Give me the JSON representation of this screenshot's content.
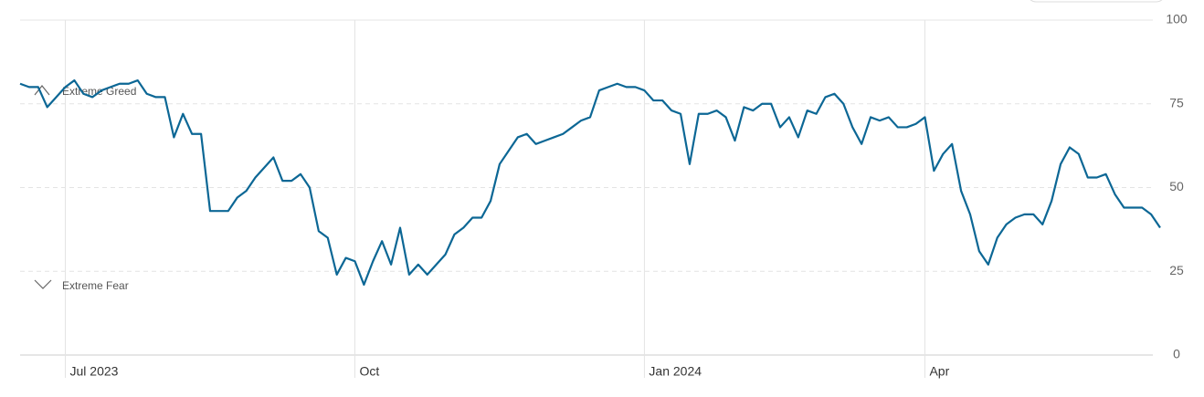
{
  "chart_data": {
    "type": "line",
    "categories": [
      null,
      null,
      null,
      null,
      null,
      "Jul 2023",
      null,
      null,
      null,
      null,
      null,
      null,
      null,
      null,
      null,
      null,
      null,
      null,
      null,
      null,
      null,
      null,
      null,
      null,
      null,
      null,
      null,
      null,
      null,
      null,
      null,
      null,
      null,
      null,
      null,
      null,
      null,
      "Oct",
      null,
      null,
      null,
      null,
      null,
      null,
      null,
      null,
      null,
      null,
      null,
      null,
      null,
      null,
      null,
      null,
      null,
      null,
      null,
      null,
      null,
      null,
      null,
      null,
      null,
      null,
      null,
      null,
      null,
      null,
      null,
      "Jan 2024",
      null,
      null,
      null,
      null,
      null,
      null,
      null,
      null,
      null,
      null,
      null,
      null,
      null,
      null,
      null,
      null,
      null,
      null,
      null,
      null,
      null,
      null,
      null,
      null,
      null,
      null,
      null,
      null,
      null,
      null,
      "Apr",
      null,
      null,
      null,
      null,
      null,
      null,
      null,
      null,
      null,
      null,
      null,
      null,
      null,
      null,
      null,
      null,
      null,
      null,
      null,
      null,
      null,
      null,
      null,
      null,
      null,
      null
    ],
    "values": [
      81,
      80,
      80,
      74,
      77,
      80,
      82,
      78,
      77,
      79,
      80,
      81,
      81,
      82,
      78,
      77,
      77,
      65,
      72,
      66,
      66,
      43,
      43,
      43,
      47,
      49,
      53,
      56,
      59,
      52,
      52,
      54,
      50,
      37,
      35,
      24,
      29,
      28,
      21,
      28,
      34,
      27,
      38,
      24,
      27,
      24,
      27,
      30,
      36,
      38,
      41,
      41,
      46,
      57,
      61,
      65,
      66,
      63,
      64,
      65,
      66,
      68,
      70,
      71,
      79,
      80,
      81,
      80,
      80,
      79,
      76,
      76,
      73,
      72,
      57,
      72,
      72,
      73,
      71,
      64,
      74,
      73,
      75,
      75,
      68,
      71,
      65,
      73,
      72,
      77,
      78,
      75,
      68,
      63,
      71,
      70,
      71,
      68,
      68,
      69,
      71,
      55,
      60,
      63,
      49,
      42,
      31,
      27,
      35,
      39,
      41,
      42,
      42,
      39,
      46,
      57,
      62,
      60,
      53,
      53,
      54,
      48,
      44,
      44,
      44,
      42,
      38
    ],
    "color": "#0c6795",
    "ylim": [
      0,
      100
    ],
    "yticks": [
      0,
      25,
      50,
      75,
      100
    ],
    "grid": true,
    "annotations": [
      {
        "text": "Extreme Greed",
        "value": 75
      },
      {
        "text": "Extreme Fear",
        "value": 25
      }
    ]
  }
}
